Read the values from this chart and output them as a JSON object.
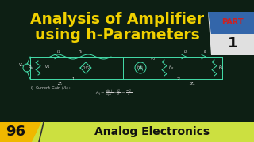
{
  "bg_color": "#0d1f14",
  "title_line1": "Analysis of Amplifier",
  "title_line2": "using h-Parameters",
  "title_color": "#f0d000",
  "title_fontsize": 13.5,
  "part_text": "PART",
  "part_num": "1",
  "part_bg_white": "#e0e0e0",
  "part_bg_blue": "#3366aa",
  "part_text_color": "#cc2222",
  "bottom_bar_color": "#cce040",
  "bottom_num": "96",
  "bottom_num_bg": "#f0b800",
  "bottom_text": "Analog Electronics",
  "bottom_text_color": "#111111",
  "circuit_color": "#44ddaa",
  "circuit_text_color": "#dddddd",
  "formula_color": "#cccccc"
}
